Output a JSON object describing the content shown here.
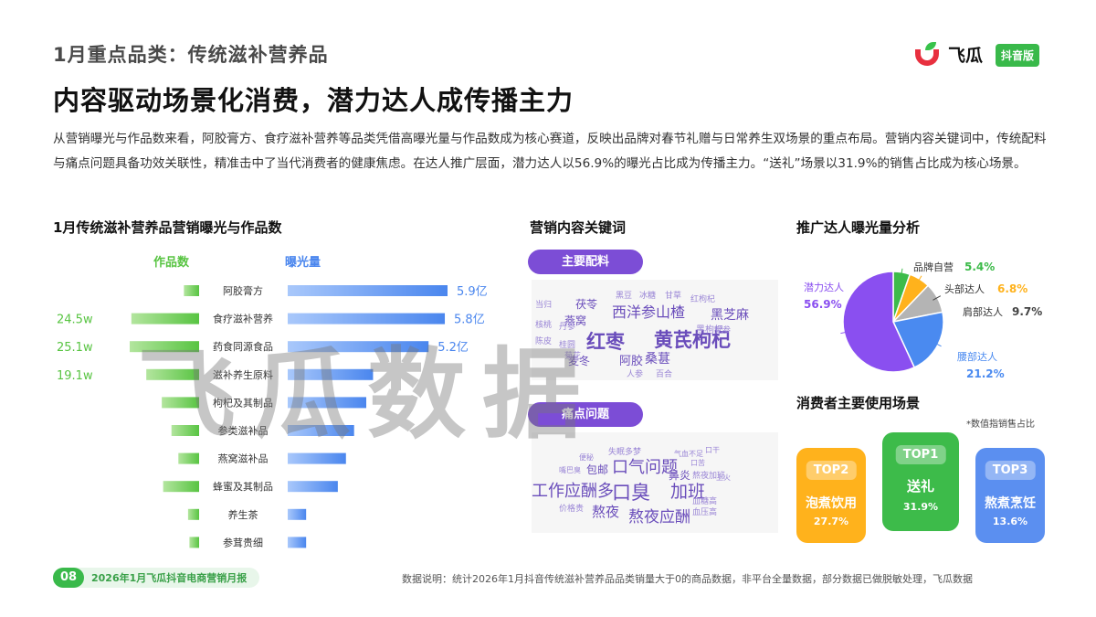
{
  "header": {
    "kicker": "1月重点品类：传统滋补营养品",
    "headline": "内容驱动场景化消费，潜力达人成传播主力",
    "logo_brand": "飞瓜",
    "logo_badge": "抖音版",
    "intro": "从营销曝光与作品数来看，阿胶膏方、食疗滋补营养等品类凭借高曝光量与作品数成为核心赛道，反映出品牌对春节礼赠与日常养生双场景的重点布局。营销内容关键词中，传统配料与痛点问题具备功效关联性，精准击中了当代消费者的健康焦虑。在达人推广层面，潜力达人以56.9%的曝光占比成为传播主力。“送礼”场景以31.9%的销售占比成为核心场景。"
  },
  "colors": {
    "green": "#58c442",
    "blue": "#4a86ee",
    "purple": "#7c4dd6",
    "pie_purple": "#8a4ff0",
    "pie_blue": "#4a8af0"
  },
  "chart_data": [
    {
      "type": "bar",
      "title": "1月传统滋补营养品营销曝光与作品数",
      "left_label": "作品数",
      "right_label": "曝光量",
      "categories": [
        "阿胶膏方",
        "食疗滋补营养",
        "药食同源食品",
        "滋补养生原料",
        "枸杞及其制品",
        "参类滋补品",
        "燕窝滋补品",
        "蜂蜜及其制品",
        "养生茶",
        "参茸贵细"
      ],
      "series": [
        {
          "name": "作品数",
          "values": [
            5.5,
            24.5,
            25.1,
            19.1,
            13.5,
            10.0,
            7.5,
            13.0,
            4.0,
            3.5
          ],
          "labels": [
            "",
            "24.5w",
            "25.1w",
            "19.1w",
            "",
            "",
            "",
            "",
            "",
            ""
          ]
        },
        {
          "name": "曝光量",
          "values": [
            5.9,
            5.8,
            5.2,
            3.15,
            2.9,
            2.45,
            2.15,
            1.85,
            0.68,
            0.68
          ],
          "labels": [
            "5.9亿",
            "5.8亿",
            "5.2亿",
            "",
            "",
            "",
            "",
            "",
            "",
            ""
          ]
        }
      ]
    },
    {
      "type": "pie",
      "title": "推广达人曝光量分析",
      "slices": [
        {
          "label": "品牌自营",
          "value": 5.4,
          "value_label": "5.4%",
          "color": "#3dbb4a"
        },
        {
          "label": "头部达人",
          "value": 6.8,
          "value_label": "6.8%",
          "color": "#ffb21c"
        },
        {
          "label": "肩部达人",
          "value": 9.7,
          "value_label": "9.7%",
          "color": "#b4b4b4"
        },
        {
          "label": "腰部达人",
          "value": 21.2,
          "value_label": "21.2%",
          "color": "#4a8af0"
        },
        {
          "label": "潜力达人",
          "value": 56.9,
          "value_label": "56.9%",
          "color": "#8a4ff0"
        }
      ]
    }
  ],
  "keywords": {
    "title": "营销内容关键词",
    "ingredients_label": "主要配料",
    "pain_label": "痛点问题",
    "ingredients": [
      {
        "text": "红枣",
        "size": 21,
        "bold": true
      },
      {
        "text": "黄芪枸杞",
        "size": 21,
        "bold": true
      },
      {
        "text": "西洋参山楂",
        "size": 16,
        "bold": false
      },
      {
        "text": "黑芝麻",
        "size": 14,
        "bold": false
      },
      {
        "text": "桑葚",
        "size": 14,
        "bold": false
      },
      {
        "text": "阿胶",
        "size": 13,
        "bold": false
      },
      {
        "text": "麦冬",
        "size": 12,
        "bold": false
      },
      {
        "text": "燕窝",
        "size": 12,
        "bold": false
      },
      {
        "text": "茯苓",
        "size": 12,
        "bold": false
      },
      {
        "text": "黑枸杞",
        "size": 10,
        "bold": false
      },
      {
        "text": "当归",
        "size": 9,
        "bold": false
      },
      {
        "text": "黑豆",
        "size": 9,
        "bold": false
      },
      {
        "text": "冰糖",
        "size": 9,
        "bold": false
      },
      {
        "text": "甘草",
        "size": 9,
        "bold": false
      },
      {
        "text": "红枸杞",
        "size": 9,
        "bold": false
      },
      {
        "text": "核桃",
        "size": 9,
        "bold": false
      },
      {
        "text": "丹参",
        "size": 9,
        "bold": false
      },
      {
        "text": "陈皮",
        "size": 9,
        "bold": false
      },
      {
        "text": "桂圆",
        "size": 9,
        "bold": false
      },
      {
        "text": "菊花",
        "size": 9,
        "bold": false
      },
      {
        "text": "人参",
        "size": 9,
        "bold": false
      },
      {
        "text": "百合",
        "size": 9,
        "bold": false
      },
      {
        "text": "党参",
        "size": 9,
        "bold": false
      }
    ],
    "pain": [
      {
        "text": "工作应酬多",
        "size": 18,
        "bold": false
      },
      {
        "text": "口臭",
        "size": 21,
        "bold": false
      },
      {
        "text": "加班",
        "size": 19,
        "bold": false
      },
      {
        "text": "口气问题",
        "size": 18,
        "bold": false
      },
      {
        "text": "熬夜应酬",
        "size": 17,
        "bold": false
      },
      {
        "text": "熬夜",
        "size": 15,
        "bold": false
      },
      {
        "text": "鼻炎",
        "size": 12,
        "bold": false
      },
      {
        "text": "包邮",
        "size": 12,
        "bold": false
      },
      {
        "text": "熬夜加班",
        "size": 9,
        "bold": false
      },
      {
        "text": "血糖高",
        "size": 9,
        "bold": false
      },
      {
        "text": "血压高",
        "size": 9,
        "bold": false
      },
      {
        "text": "失眠多梦",
        "size": 9,
        "bold": false
      },
      {
        "text": "价格贵",
        "size": 9,
        "bold": false
      },
      {
        "text": "便秘",
        "size": 8,
        "bold": false
      },
      {
        "text": "嘴巴臭",
        "size": 8,
        "bold": false
      },
      {
        "text": "气血不足",
        "size": 8,
        "bold": false
      },
      {
        "text": "口苦",
        "size": 8,
        "bold": false
      },
      {
        "text": "上火",
        "size": 8,
        "bold": false
      },
      {
        "text": "口干",
        "size": 8,
        "bold": false
      }
    ]
  },
  "scenes": {
    "title": "消费者主要使用场景",
    "note": "*数值指销售占比",
    "cards": [
      {
        "rank": "TOP2",
        "name": "泡煮饮用",
        "value": "27.7%",
        "color": "#ffb21c"
      },
      {
        "rank": "TOP1",
        "name": "送礼",
        "value": "31.9%",
        "color": "#3dbb4a"
      },
      {
        "rank": "TOP3",
        "name": "熬煮烹饪",
        "value": "13.6%",
        "color": "#5b8ff0"
      }
    ]
  },
  "watermark": "飞瓜数据",
  "footer": {
    "page_number": "08",
    "report_name": "2026年1月飞瓜抖音电商营销月报",
    "source": "数据说明：统计2026年1月抖音传统滋补营养品品类销量大于0的商品数据，非平台全量数据，部分数据已做脱敏处理，飞瓜数据"
  }
}
